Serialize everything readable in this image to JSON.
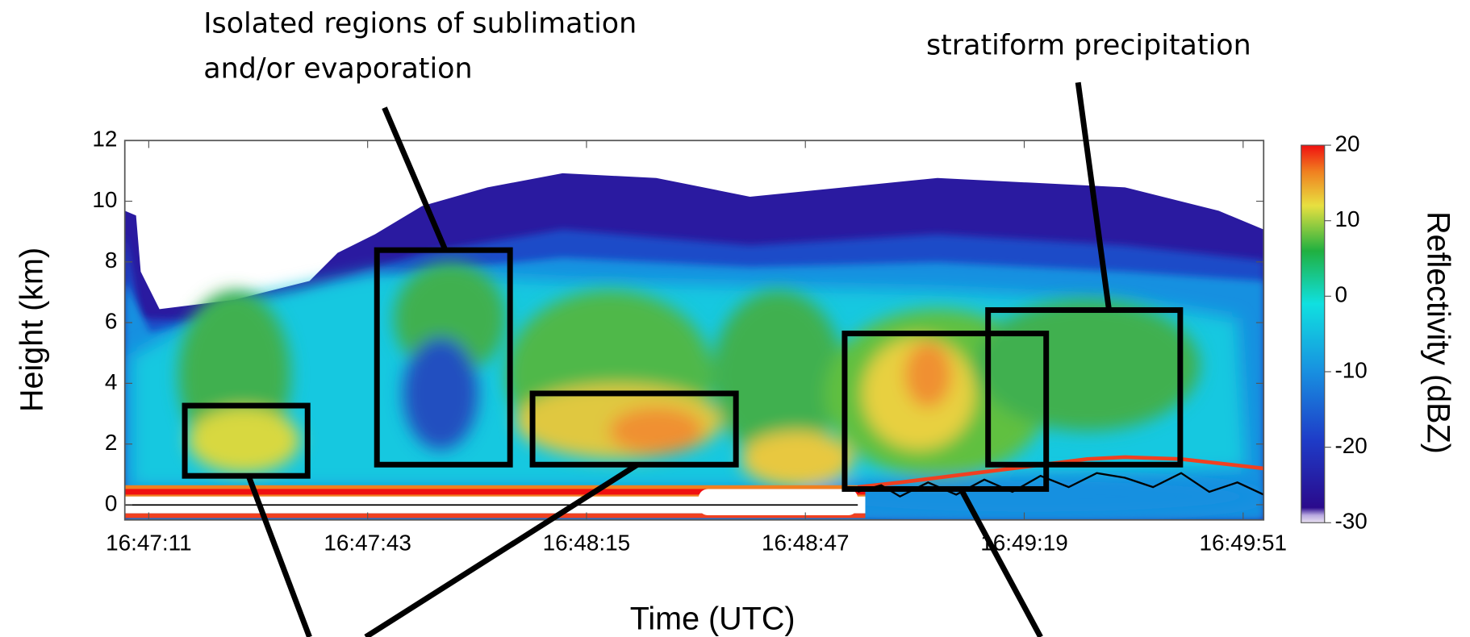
{
  "chart_data": {
    "type": "heatmap",
    "annotations": [
      "Isolated regions of sublimation",
      "and/or evaporation",
      "stratiform precipitation"
    ],
    "xlabel": "Time (UTC)",
    "ylabel": "Height (km)",
    "colorbar_label": "Reflectivity (dBZ)",
    "xlim": [
      60427.5,
      60594
    ],
    "xticks": [
      {
        "value": 60431,
        "label": "16:47:11"
      },
      {
        "value": 60463,
        "label": "16:47:43"
      },
      {
        "value": 60495,
        "label": "16:48:15"
      },
      {
        "value": 60527,
        "label": "16:48:47"
      },
      {
        "value": 60559,
        "label": "16:49:19"
      },
      {
        "value": 60591,
        "label": "16:49:51"
      }
    ],
    "ylim": [
      -0.5,
      12
    ],
    "yticks": [
      0,
      2,
      4,
      6,
      8,
      10,
      12
    ],
    "zlim": [
      -30,
      20
    ],
    "zticks": [
      20,
      10,
      0,
      -10,
      -20,
      -30
    ]
  }
}
